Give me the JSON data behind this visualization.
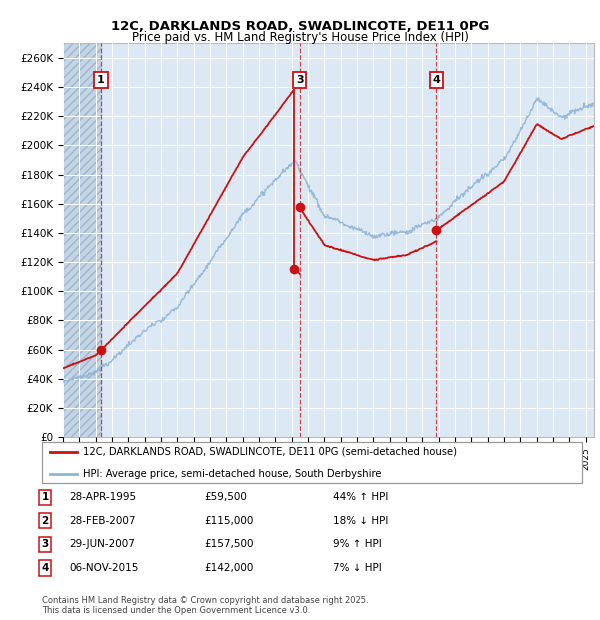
{
  "title_line1": "12C, DARKLANDS ROAD, SWADLINCOTE, DE11 0PG",
  "title_line2": "Price paid vs. HM Land Registry's House Price Index (HPI)",
  "xlim_start": 1993.0,
  "xlim_end": 2025.5,
  "ylim_min": 0,
  "ylim_max": 270000,
  "yticks": [
    0,
    20000,
    40000,
    60000,
    80000,
    100000,
    120000,
    140000,
    160000,
    180000,
    200000,
    220000,
    240000,
    260000
  ],
  "ytick_labels": [
    "£0",
    "£20K",
    "£40K",
    "£60K",
    "£80K",
    "£100K",
    "£120K",
    "£140K",
    "£160K",
    "£180K",
    "£200K",
    "£220K",
    "£240K",
    "£260K"
  ],
  "hpi_color": "#91b5d5",
  "price_color": "#cc1111",
  "sale_dates": [
    1995.32,
    2007.13,
    2007.49,
    2015.85
  ],
  "sale_prices": [
    59500,
    115000,
    157500,
    142000
  ],
  "sale_labels": [
    "1",
    "2",
    "3",
    "4"
  ],
  "vline_indices": [
    0,
    2,
    3
  ],
  "vline_color": "#cc1111",
  "background_color": "#dde8f5",
  "hatch_area_end": 1995.3,
  "legend_label_red": "12C, DARKLANDS ROAD, SWADLINCOTE, DE11 0PG (semi-detached house)",
  "legend_label_blue": "HPI: Average price, semi-detached house, South Derbyshire",
  "table_rows": [
    [
      "1",
      "28-APR-1995",
      "£59,500",
      "44%",
      "↑",
      "HPI"
    ],
    [
      "2",
      "28-FEB-2007",
      "£115,000",
      "18%",
      "↓",
      "HPI"
    ],
    [
      "3",
      "29-JUN-2007",
      "£157,500",
      "9%",
      "↑",
      "HPI"
    ],
    [
      "4",
      "06-NOV-2015",
      "£142,000",
      "7%",
      "↓",
      "HPI"
    ]
  ],
  "footnote": "Contains HM Land Registry data © Crown copyright and database right 2025.\nThis data is licensed under the Open Government Licence v3.0."
}
